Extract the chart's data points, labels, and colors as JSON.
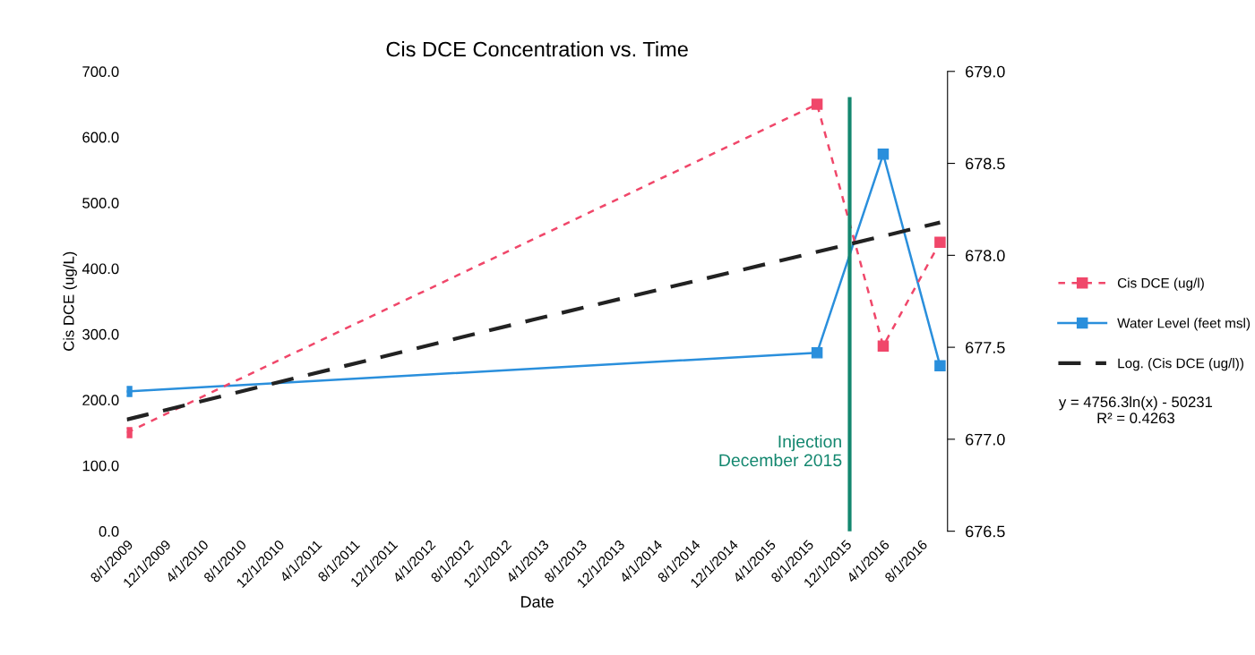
{
  "chart_data": {
    "type": "line",
    "title": "Cis DCE Concentration vs. Time",
    "xlabel": "Date",
    "ylabel": "Cis DCE (ug/L)",
    "xlim": [
      "2009-08-01",
      "2016-10-25"
    ],
    "xticks": [
      {
        "value": "2009-08-01",
        "label": "8/1/2009"
      },
      {
        "value": "2009-12-01",
        "label": "12/1/2009"
      },
      {
        "value": "2010-04-01",
        "label": "4/1/2010"
      },
      {
        "value": "2010-08-01",
        "label": "8/1/2010"
      },
      {
        "value": "2010-12-01",
        "label": "12/1/2010"
      },
      {
        "value": "2011-04-01",
        "label": "4/1/2011"
      },
      {
        "value": "2011-08-01",
        "label": "8/1/2011"
      },
      {
        "value": "2011-12-01",
        "label": "12/1/2011"
      },
      {
        "value": "2012-04-01",
        "label": "4/1/2012"
      },
      {
        "value": "2012-08-01",
        "label": "8/1/2012"
      },
      {
        "value": "2012-12-01",
        "label": "12/1/2012"
      },
      {
        "value": "2013-04-01",
        "label": "4/1/2013"
      },
      {
        "value": "2013-08-01",
        "label": "8/1/2013"
      },
      {
        "value": "2013-12-01",
        "label": "12/1/2013"
      },
      {
        "value": "2014-04-01",
        "label": "4/1/2014"
      },
      {
        "value": "2014-08-01",
        "label": "8/1/2014"
      },
      {
        "value": "2014-12-01",
        "label": "12/1/2014"
      },
      {
        "value": "2015-04-01",
        "label": "4/1/2015"
      },
      {
        "value": "2015-08-01",
        "label": "8/1/2015"
      },
      {
        "value": "2015-12-01",
        "label": "12/1/2015"
      },
      {
        "value": "2016-04-01",
        "label": "4/1/2016"
      },
      {
        "value": "2016-08-01",
        "label": "8/1/2016"
      }
    ],
    "ylim": [
      0,
      700
    ],
    "yticks": [
      {
        "value": 0,
        "label": "0.0"
      },
      {
        "value": 100,
        "label": "100.0"
      },
      {
        "value": 200,
        "label": "200.0"
      },
      {
        "value": 300,
        "label": "300.0"
      },
      {
        "value": 400,
        "label": "400.0"
      },
      {
        "value": 500,
        "label": "500.0"
      },
      {
        "value": 600,
        "label": "600.0"
      },
      {
        "value": 700,
        "label": "700.0"
      }
    ],
    "y2lim": [
      676.5,
      679.0
    ],
    "y2ticks": [
      {
        "value": 676.5,
        "label": "676.5"
      },
      {
        "value": 677.0,
        "label": "677.0"
      },
      {
        "value": 677.5,
        "label": "677.5"
      },
      {
        "value": 678.0,
        "label": "678.0"
      },
      {
        "value": 678.5,
        "label": "678.5"
      },
      {
        "value": 679.0,
        "label": "679.0"
      }
    ],
    "series": [
      {
        "name": "Cis DCE (ug/l)",
        "color": "#f0476a",
        "marker": "square",
        "line_style": "dashed",
        "x": [
          "2009-08-01",
          "2015-09-01",
          "2016-04-01",
          "2016-10-01"
        ],
        "values": [
          150,
          650,
          282,
          440
        ]
      },
      {
        "name": "Water Level (feet msl)",
        "color": "#2a8fdc",
        "marker": "square",
        "line_style": "solid",
        "axis": "y2",
        "x": [
          "2009-08-01",
          "2015-09-01",
          "2016-04-01",
          "2016-10-01"
        ],
        "values": [
          677.26,
          677.47,
          678.55,
          677.4
        ]
      },
      {
        "name": "Log. (Cis DCE (ug/l))",
        "color": "#222222",
        "marker": "none",
        "line_style": "dashed",
        "x": [
          "2009-08-01",
          "2013-03-01",
          "2016-10-01"
        ],
        "values": [
          170,
          322,
          470
        ]
      }
    ],
    "ref_lines": [
      {
        "axis": "x",
        "value": "2015-12-15",
        "label": "Injection\nDecember 2015",
        "color": "#13876f"
      }
    ],
    "annotations": [
      "y = 4756.3ln(x) - 50231\nR² = 0.4263"
    ],
    "legend": "right",
    "grid": false
  }
}
